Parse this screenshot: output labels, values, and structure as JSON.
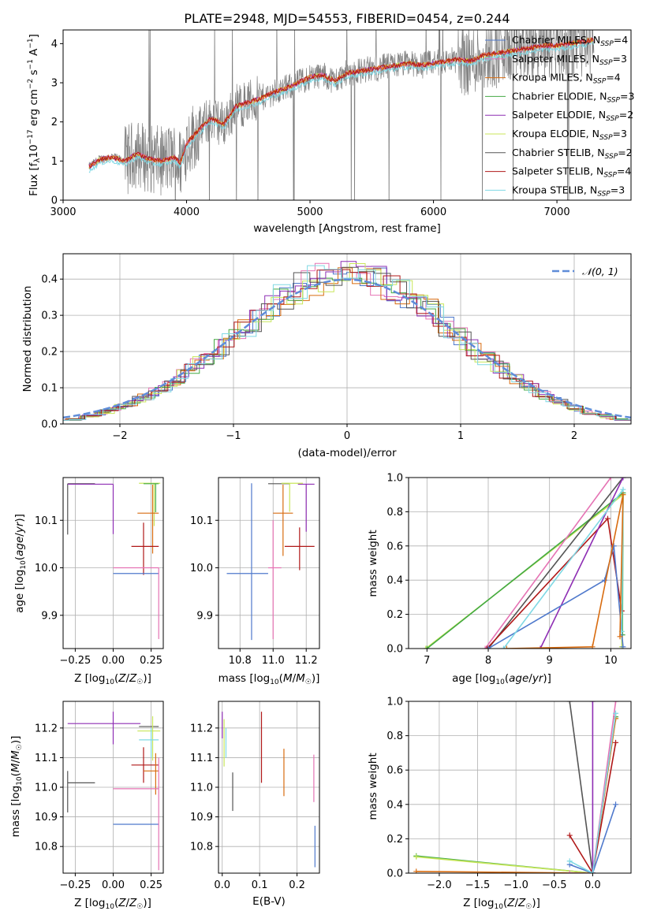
{
  "colors": {
    "chabrier_miles": "#4f79cc",
    "salpeter_miles": "#e573b4",
    "kroupa_miles": "#d86c10",
    "chabrier_elodie": "#44aa44",
    "salpeter_elodie": "#8e2eb4",
    "kroupa_elodie": "#c8e65a",
    "chabrier_stelib": "#555555",
    "salpeter_stelib": "#b01818",
    "kroupa_stelib": "#7fd8e4",
    "spectrum": "#808080",
    "gaussian": "#5f8cd8",
    "grid": "#b0b0b0"
  },
  "chart_data": [
    {
      "id": "spectrum",
      "type": "line",
      "title": "PLATE=2948, MJD=54553, FIBERID=0454, z=0.244",
      "xlabel": "wavelength [Angstrom, rest frame]",
      "ylabel": "Flux [fλ10⁻¹⁷ erg cm⁻² s⁻¹ A⁻¹]",
      "xlim": [
        3000,
        7600
      ],
      "ylim": [
        0,
        4.35
      ],
      "xticks": [
        3000,
        4000,
        5000,
        6000,
        7000
      ],
      "yticks": [
        0,
        1,
        2,
        3,
        4
      ],
      "legend_position": "top-right",
      "legend": [
        {
          "label": "Chabrier MILES, N_SSP=4",
          "color_key": "chabrier_miles"
        },
        {
          "label": "Salpeter MILES, N_SSP=3",
          "color_key": "salpeter_miles"
        },
        {
          "label": "Kroupa MILES, N_SSP=4",
          "color_key": "kroupa_miles"
        },
        {
          "label": "Chabrier ELODIE, N_SSP=3",
          "color_key": "chabrier_elodie"
        },
        {
          "label": "Salpeter ELODIE, N_SSP=2",
          "color_key": "salpeter_elodie"
        },
        {
          "label": "Kroupa ELODIE, N_SSP=3",
          "color_key": "kroupa_elodie"
        },
        {
          "label": "Chabrier STELIB, N_SSP=2",
          "color_key": "chabrier_stelib"
        },
        {
          "label": "Salpeter STELIB, N_SSP=4",
          "color_key": "salpeter_stelib"
        },
        {
          "label": "Kroupa STELIB, N_SSP=3",
          "color_key": "kroupa_stelib"
        }
      ],
      "model_continuum": [
        [
          3210,
          0.85
        ],
        [
          3300,
          1.05
        ],
        [
          3400,
          1.1
        ],
        [
          3500,
          1.0
        ],
        [
          3600,
          1.2
        ],
        [
          3700,
          1.05
        ],
        [
          3800,
          1.0
        ],
        [
          3900,
          1.1
        ],
        [
          3950,
          0.95
        ],
        [
          4000,
          1.45
        ],
        [
          4100,
          1.8
        ],
        [
          4200,
          2.1
        ],
        [
          4300,
          1.95
        ],
        [
          4400,
          2.4
        ],
        [
          4500,
          2.5
        ],
        [
          4600,
          2.6
        ],
        [
          4700,
          2.75
        ],
        [
          4800,
          2.85
        ],
        [
          4900,
          3.0
        ],
        [
          5000,
          3.15
        ],
        [
          5100,
          3.2
        ],
        [
          5200,
          3.05
        ],
        [
          5300,
          3.25
        ],
        [
          5400,
          3.3
        ],
        [
          5500,
          3.35
        ],
        [
          5600,
          3.4
        ],
        [
          5700,
          3.45
        ],
        [
          5800,
          3.5
        ],
        [
          5900,
          3.45
        ],
        [
          6000,
          3.5
        ],
        [
          6100,
          3.55
        ],
        [
          6200,
          3.6
        ],
        [
          6300,
          3.55
        ],
        [
          6400,
          3.7
        ],
        [
          6500,
          3.75
        ],
        [
          6600,
          3.8
        ],
        [
          6700,
          3.85
        ],
        [
          6800,
          3.9
        ],
        [
          6900,
          3.95
        ],
        [
          7000,
          3.95
        ],
        [
          7100,
          4.0
        ],
        [
          7200,
          4.05
        ],
        [
          7300,
          4.1
        ]
      ],
      "data_range": [
        3210,
        7300
      ]
    },
    {
      "id": "residuals",
      "type": "line",
      "xlabel": "(data-model)/error",
      "ylabel": "Normed distribution",
      "xlim": [
        -2.5,
        2.5
      ],
      "ylim": [
        0,
        0.47
      ],
      "xticks": [
        -2,
        -1,
        0,
        1,
        2
      ],
      "yticks": [
        0.0,
        0.1,
        0.2,
        0.3,
        0.4
      ],
      "legend_position": "top-right",
      "legend": [
        {
          "label": "N(0,1)",
          "color_key": "gaussian"
        }
      ],
      "series": [
        {
          "name": "N(0,1)",
          "function": "standard_normal_pdf"
        }
      ]
    },
    {
      "id": "age-vs-Z",
      "type": "scatter",
      "xlabel": "Z [log10(Z/Z☉)]",
      "ylabel": "age  [log10(age/yr)]",
      "xlim": [
        -0.33,
        0.33
      ],
      "ylim": [
        9.83,
        10.19
      ],
      "xticks": [
        -0.25,
        0.0,
        0.25
      ],
      "xticklabels": [
        "−0.25",
        "0.00",
        "0.25"
      ],
      "yticks": [
        9.9,
        10.0,
        10.1
      ],
      "points": [
        {
          "color_key": "chabrier_stelib",
          "x": -0.3,
          "y": 10.177,
          "xerr": [
            0,
            0.18
          ],
          "yerr": [
            0.107,
            0
          ]
        },
        {
          "color_key": "salpeter_elodie",
          "x": 0.0,
          "y": 10.176,
          "xerr": [
            0.3,
            0
          ],
          "yerr": [
            0.105,
            0
          ]
        },
        {
          "color_key": "kroupa_elodie",
          "x": 0.27,
          "y": 10.178,
          "xerr": [
            0.1,
            0.04
          ],
          "yerr": [
            0.09,
            0
          ]
        },
        {
          "color_key": "chabrier_elodie",
          "x": 0.28,
          "y": 10.177,
          "xerr": [
            0.08,
            0.02
          ],
          "yerr": [
            0.06,
            0
          ]
        },
        {
          "color_key": "kroupa_miles",
          "x": 0.26,
          "y": 10.115,
          "xerr": [
            0.1,
            0.04
          ],
          "yerr": [
            0.085,
            0.06
          ]
        },
        {
          "color_key": "salpeter_stelib",
          "x": 0.2,
          "y": 10.045,
          "xerr": [
            0.08,
            0.1
          ],
          "yerr": [
            0.06,
            0.05
          ]
        },
        {
          "color_key": "salpeter_miles",
          "x": 0.15,
          "y": 10.0,
          "xerr": [
            0.15,
            0.15
          ],
          "yerr": [
            0,
            0
          ]
        },
        {
          "color_key": "chabrier_miles",
          "x": 0.15,
          "y": 9.988,
          "xerr": [
            0.15,
            0.15
          ],
          "yerr": [
            0,
            0
          ]
        },
        {
          "color_key": "salpeter_miles",
          "x": 0.3,
          "y": 9.95,
          "xerr": [
            0,
            0
          ],
          "yerr": [
            0.1,
            0.05
          ]
        }
      ]
    },
    {
      "id": "age-vs-mass",
      "type": "scatter",
      "xlabel": "mass [log10(M/M☉)]",
      "xlim": [
        10.67,
        11.28
      ],
      "ylim": [
        9.83,
        10.19
      ],
      "xticks": [
        10.8,
        11.0,
        11.2
      ],
      "yticks": [
        9.9,
        10.0,
        10.1
      ],
      "points": [
        {
          "color_key": "chabrier_stelib",
          "x": 11.0,
          "y": 10.177,
          "xerr": [
            0.03,
            0.1
          ],
          "yerr": [
            0,
            0
          ]
        },
        {
          "color_key": "salpeter_elodie",
          "x": 11.2,
          "y": 10.176,
          "xerr": [
            0.05,
            0.05
          ],
          "yerr": [
            0.1,
            0
          ]
        },
        {
          "color_key": "kroupa_elodie",
          "x": 11.1,
          "y": 10.178,
          "xerr": [
            0.05,
            0.08
          ],
          "yerr": [
            0.06,
            0
          ]
        },
        {
          "color_key": "chabrier_miles",
          "x": 10.87,
          "y": 9.988,
          "xerr": [
            0.15,
            0.1
          ],
          "yerr": [
            0.14,
            0.19
          ]
        },
        {
          "color_key": "kroupa_miles",
          "x": 11.06,
          "y": 10.115,
          "xerr": [
            0.06,
            0.06
          ],
          "yerr": [
            0.09,
            0.06
          ]
        },
        {
          "color_key": "salpeter_stelib",
          "x": 11.16,
          "y": 10.045,
          "xerr": [
            0.09,
            0.09
          ],
          "yerr": [
            0.05,
            0.04
          ]
        },
        {
          "color_key": "salpeter_miles",
          "x": 11.0,
          "y": 10.0,
          "xerr": [
            0.03,
            0.05
          ],
          "yerr": [
            0.15,
            0.1
          ]
        }
      ]
    },
    {
      "id": "mass-weight-vs-age",
      "type": "line",
      "xlabel": "age  [log10(age/yr)]",
      "ylabel": "mass weight",
      "xlim": [
        6.7,
        10.33
      ],
      "ylim": [
        0,
        1
      ],
      "xticks": [
        7,
        8,
        9,
        10
      ],
      "yticks": [
        0.0,
        0.2,
        0.4,
        0.6,
        0.8,
        1.0
      ],
      "series": [
        {
          "color_key": "kroupa_elodie",
          "x": [
            6.98,
            10.2,
            10.18
          ],
          "y": [
            0.0,
            0.9,
            0.01
          ]
        },
        {
          "color_key": "chabrier_elodie",
          "x": [
            7.0,
            10.2,
            10.19
          ],
          "y": [
            0.0,
            0.91,
            0.08
          ]
        },
        {
          "color_key": "salpeter_miles",
          "x": [
            7.95,
            10.0
          ],
          "y": [
            0.0,
            1.0
          ]
        },
        {
          "color_key": "chabrier_stelib",
          "x": [
            8.0,
            10.2
          ],
          "y": [
            0.0,
            1.0
          ]
        },
        {
          "color_key": "salpeter_stelib",
          "x": [
            7.98,
            9.95,
            10.18
          ],
          "y": [
            0.0,
            0.76,
            0.22
          ]
        },
        {
          "color_key": "salpeter_elodie",
          "x": [
            8.85,
            10.2
          ],
          "y": [
            0.0,
            1.0
          ]
        },
        {
          "color_key": "chabrier_miles",
          "x": [
            8.0,
            9.9,
            10.05,
            10.2
          ],
          "y": [
            0.0,
            0.4,
            0.6,
            0.01
          ]
        },
        {
          "color_key": "kroupa_stelib",
          "x": [
            8.25,
            10.2,
            10.18
          ],
          "y": [
            0.0,
            0.93,
            0.1
          ]
        },
        {
          "color_key": "kroupa_miles",
          "x": [
            8.3,
            9.7,
            10.2,
            10.15
          ],
          "y": [
            0.0,
            0.01,
            0.9,
            0.07
          ]
        }
      ]
    },
    {
      "id": "mass-vs-Z",
      "type": "scatter",
      "xlabel": "Z [log10(Z/Z☉)]",
      "ylabel": "mass [log10(M/M☉)]",
      "xlim": [
        -0.33,
        0.33
      ],
      "ylim": [
        10.71,
        11.29
      ],
      "xticks": [
        -0.25,
        0.0,
        0.25
      ],
      "xticklabels": [
        "−0.25",
        "0.00",
        "0.25"
      ],
      "yticks": [
        10.8,
        10.9,
        11.0,
        11.1,
        11.2
      ],
      "points": [
        {
          "color_key": "salpeter_elodie",
          "x": 0.0,
          "y": 11.215,
          "xerr": [
            0.3,
            0.18
          ],
          "yerr": [
            0.07,
            0.04
          ]
        },
        {
          "color_key": "chabrier_stelib",
          "x": -0.3,
          "y": 11.015,
          "xerr": [
            0,
            0.18
          ],
          "yerr": [
            0.1,
            0.04
          ]
        },
        {
          "color_key": "chabrier_stelib",
          "x": 0.27,
          "y": 11.205,
          "xerr": [
            0.1,
            0.03
          ],
          "yerr": [
            0,
            0
          ]
        },
        {
          "color_key": "kroupa_elodie",
          "x": 0.26,
          "y": 11.19,
          "xerr": [
            0.1,
            0.05
          ],
          "yerr": [
            0.1,
            0.05
          ]
        },
        {
          "color_key": "kroupa_stelib",
          "x": 0.25,
          "y": 11.16,
          "xerr": [
            0.08,
            0.05
          ],
          "yerr": [
            0.06,
            0.04
          ]
        },
        {
          "color_key": "salpeter_stelib",
          "x": 0.2,
          "y": 11.075,
          "xerr": [
            0.08,
            0.1
          ],
          "yerr": [
            0.06,
            0.06
          ]
        },
        {
          "color_key": "kroupa_miles",
          "x": 0.28,
          "y": 11.055,
          "xerr": [
            0.08,
            0.02
          ],
          "yerr": [
            0.08,
            0.06
          ]
        },
        {
          "color_key": "salpeter_miles",
          "x": 0.15,
          "y": 10.995,
          "xerr": [
            0.15,
            0.15
          ],
          "yerr": [
            0,
            0
          ]
        },
        {
          "color_key": "chabrier_miles",
          "x": 0.15,
          "y": 10.875,
          "xerr": [
            0.15,
            0.15
          ],
          "yerr": [
            0,
            0
          ]
        },
        {
          "color_key": "salpeter_miles",
          "x": 0.3,
          "y": 11.0,
          "xerr": [
            0,
            0
          ],
          "yerr": [
            0.28,
            0.1
          ]
        }
      ]
    },
    {
      "id": "mass-vs-EBV",
      "type": "scatter",
      "xlabel": "E(B-V)",
      "xlim": [
        -0.01,
        0.26
      ],
      "ylim": [
        10.71,
        11.29
      ],
      "xticks": [
        0.0,
        0.1,
        0.2
      ],
      "yticks": [
        10.8,
        10.9,
        11.0,
        11.1,
        11.2
      ],
      "points": [
        {
          "color_key": "salpeter_elodie",
          "x": 0.0,
          "y": 11.215,
          "xerr": [
            0,
            0
          ],
          "yerr": [
            0.05,
            0.04
          ]
        },
        {
          "color_key": "kroupa_elodie",
          "x": 0.005,
          "y": 11.19,
          "xerr": [
            0,
            0
          ],
          "yerr": [
            0.12,
            0.04
          ]
        },
        {
          "color_key": "kroupa_stelib",
          "x": 0.01,
          "y": 11.16,
          "xerr": [
            0,
            0
          ],
          "yerr": [
            0.06,
            0.04
          ]
        },
        {
          "color_key": "chabrier_stelib",
          "x": 0.028,
          "y": 11.0,
          "xerr": [
            0,
            0
          ],
          "yerr": [
            0.08,
            0.05
          ]
        },
        {
          "color_key": "salpeter_stelib",
          "x": 0.105,
          "y": 11.135,
          "xerr": [
            0,
            0
          ],
          "yerr": [
            0.12,
            0.12
          ]
        },
        {
          "color_key": "kroupa_miles",
          "x": 0.165,
          "y": 11.05,
          "xerr": [
            0,
            0
          ],
          "yerr": [
            0.08,
            0.08
          ]
        },
        {
          "color_key": "salpeter_miles",
          "x": 0.245,
          "y": 11.05,
          "xerr": [
            0,
            0
          ],
          "yerr": [
            0.1,
            0.06
          ]
        },
        {
          "color_key": "chabrier_miles",
          "x": 0.248,
          "y": 10.8,
          "xerr": [
            0,
            0
          ],
          "yerr": [
            0.07,
            0.07
          ]
        }
      ]
    },
    {
      "id": "mass-weight-vs-Z",
      "type": "line",
      "xlabel": "Z [log10(Z/Z☉)]",
      "ylabel": "mass weight",
      "xlim": [
        -2.4,
        0.5
      ],
      "ylim": [
        0,
        1
      ],
      "xticks": [
        -2.0,
        -1.5,
        -1.0,
        -0.5,
        0.0
      ],
      "xticklabels": [
        "−2.0",
        "−1.5",
        "−1.0",
        "−0.5",
        "0.0"
      ],
      "yticks": [
        0.0,
        0.2,
        0.4,
        0.6,
        0.8,
        1.0
      ],
      "series": [
        {
          "color_key": "chabrier_elodie",
          "x": [
            -2.3,
            0.0,
            0.3
          ],
          "y": [
            0.1,
            0.0,
            0.91
          ]
        },
        {
          "color_key": "kroupa_elodie",
          "x": [
            -2.3,
            0.0,
            0.3
          ],
          "y": [
            0.095,
            0.0,
            0.9
          ]
        },
        {
          "color_key": "kroupa_miles",
          "x": [
            -2.3,
            0.0,
            0.3
          ],
          "y": [
            0.01,
            0.0,
            0.9
          ]
        },
        {
          "color_key": "chabrier_stelib",
          "x": [
            -0.3,
            0.0
          ],
          "y": [
            1.0,
            0.0
          ]
        },
        {
          "color_key": "salpeter_stelib",
          "x": [
            -0.3,
            0.0,
            0.3
          ],
          "y": [
            0.22,
            0.0,
            0.76
          ]
        },
        {
          "color_key": "salpeter_elodie",
          "x": [
            0.0,
            0.0
          ],
          "y": [
            0.0,
            1.0
          ]
        },
        {
          "color_key": "salpeter_miles",
          "x": [
            -0.3,
            0.0,
            0.3
          ],
          "y": [
            0.0,
            0.0,
            1.0
          ]
        },
        {
          "color_key": "chabrier_miles",
          "x": [
            -0.3,
            0.0,
            0.3
          ],
          "y": [
            0.05,
            0.0,
            0.4
          ]
        },
        {
          "color_key": "kroupa_stelib",
          "x": [
            -0.3,
            0.0,
            0.3
          ],
          "y": [
            0.07,
            0.0,
            0.93
          ]
        }
      ]
    }
  ]
}
